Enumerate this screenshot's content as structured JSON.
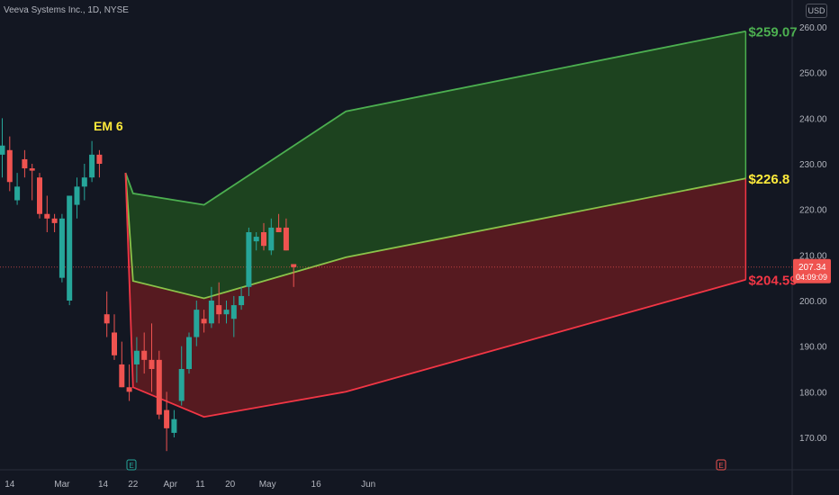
{
  "header": {
    "symbol": "Veeva Systems Inc., 1D, NYSE",
    "currency": "USD"
  },
  "colors": {
    "background": "#131722",
    "up": "#26a69a",
    "down": "#ef5350",
    "upper_band_fill": "#1e4620",
    "lower_band_fill": "#5a1a21",
    "upper_line": "#4caf50",
    "mid_line": "#8bc34a",
    "lower_line": "#f23645",
    "label_green": "#4caf50",
    "label_yellow": "#ffeb3b",
    "label_red": "#f23645",
    "em_label": "#ffeb3b"
  },
  "chart_data": {
    "type": "candlestick",
    "y_axis": {
      "range": [
        162.5,
        263
      ],
      "ticks": [
        {
          "value": 260,
          "label": "260.00"
        },
        {
          "value": 250,
          "label": "250.00"
        },
        {
          "value": 240,
          "label": "240.00"
        },
        {
          "value": 230,
          "label": "230.00"
        },
        {
          "value": 220,
          "label": "220.00"
        },
        {
          "value": 210,
          "label": "210.00"
        },
        {
          "value": 200,
          "label": "200.00"
        },
        {
          "value": 190,
          "label": "190.00"
        },
        {
          "value": 180,
          "label": "180.00"
        },
        {
          "value": 170,
          "label": "170.00"
        }
      ]
    },
    "x_axis": {
      "ticks": [
        {
          "index": 1,
          "label": "14"
        },
        {
          "index": 8,
          "label": "Mar"
        },
        {
          "index": 13.5,
          "label": "14"
        },
        {
          "index": 17.5,
          "label": "22"
        },
        {
          "index": 22.5,
          "label": "Apr"
        },
        {
          "index": 26.5,
          "label": "11"
        },
        {
          "index": 30.5,
          "label": "20"
        },
        {
          "index": 35.5,
          "label": "May"
        },
        {
          "index": 42,
          "label": "16"
        },
        {
          "index": 49,
          "label": "Jun"
        }
      ]
    },
    "candles": [
      {
        "o": 232,
        "h": 240,
        "l": 227,
        "c": 234
      },
      {
        "o": 233,
        "h": 236,
        "l": 224,
        "c": 226
      },
      {
        "o": 222,
        "h": 228,
        "l": 221,
        "c": 225
      },
      {
        "o": 231,
        "h": 233,
        "l": 227,
        "c": 229
      },
      {
        "o": 229,
        "h": 230,
        "l": 222,
        "c": 228.5
      },
      {
        "o": 227,
        "h": 228,
        "l": 218,
        "c": 219
      },
      {
        "o": 219,
        "h": 223,
        "l": 215,
        "c": 218
      },
      {
        "o": 218,
        "h": 219,
        "l": 215,
        "c": 217
      },
      {
        "o": 205,
        "h": 219,
        "l": 204,
        "c": 218
      },
      {
        "o": 200,
        "h": 222,
        "l": 199,
        "c": 223
      },
      {
        "o": 221,
        "h": 227,
        "l": 218,
        "c": 225
      },
      {
        "o": 225,
        "h": 230,
        "l": 222,
        "c": 227
      },
      {
        "o": 227,
        "h": 235,
        "l": 226,
        "c": 232
      },
      {
        "o": 232,
        "h": 233,
        "l": 227,
        "c": 230
      },
      {
        "o": 197,
        "h": 202,
        "l": 192,
        "c": 195
      },
      {
        "o": 193,
        "h": 197,
        "l": 187,
        "c": 188
      },
      {
        "o": 186,
        "h": 191,
        "l": 181,
        "c": 181
      },
      {
        "o": 181,
        "h": 186,
        "l": 178,
        "c": 180
      },
      {
        "o": 186,
        "h": 192,
        "l": 182,
        "c": 189
      },
      {
        "o": 189,
        "h": 193,
        "l": 184,
        "c": 187
      },
      {
        "o": 187,
        "h": 195,
        "l": 180,
        "c": 185
      },
      {
        "o": 187,
        "h": 189,
        "l": 174,
        "c": 175
      },
      {
        "o": 176,
        "h": 180,
        "l": 167,
        "c": 172
      },
      {
        "o": 171,
        "h": 176,
        "l": 170,
        "c": 174
      },
      {
        "o": 178,
        "h": 190,
        "l": 177,
        "c": 185
      },
      {
        "o": 185,
        "h": 193,
        "l": 184,
        "c": 192
      },
      {
        "o": 192,
        "h": 200,
        "l": 190,
        "c": 198
      },
      {
        "o": 196,
        "h": 198,
        "l": 193,
        "c": 195
      },
      {
        "o": 195,
        "h": 203,
        "l": 194,
        "c": 200
      },
      {
        "o": 199,
        "h": 204,
        "l": 195,
        "c": 197
      },
      {
        "o": 197,
        "h": 200,
        "l": 195,
        "c": 198
      },
      {
        "o": 196,
        "h": 201,
        "l": 192,
        "c": 199
      },
      {
        "o": 199,
        "h": 203,
        "l": 198,
        "c": 201
      },
      {
        "o": 203,
        "h": 216,
        "l": 201,
        "c": 215
      },
      {
        "o": 213,
        "h": 215,
        "l": 211,
        "c": 214
      },
      {
        "o": 215,
        "h": 217,
        "l": 211,
        "c": 212
      },
      {
        "o": 211,
        "h": 218,
        "l": 210,
        "c": 216
      },
      {
        "o": 216,
        "h": 219,
        "l": 215,
        "c": 215
      },
      {
        "o": 216,
        "h": 218,
        "l": 211,
        "c": 211
      },
      {
        "o": 208,
        "h": 208,
        "l": 203,
        "c": 207.34
      }
    ],
    "bands": {
      "upper": [
        {
          "x": 16.5,
          "y": 228
        },
        {
          "x": 17.5,
          "y": 223.5
        },
        {
          "x": 27,
          "y": 221
        },
        {
          "x": 46,
          "y": 241.5
        },
        {
          "x": 99.5,
          "y": 259.07
        }
      ],
      "mid": [
        {
          "x": 16.5,
          "y": 228
        },
        {
          "x": 17.5,
          "y": 204.3
        },
        {
          "x": 27,
          "y": 200.5
        },
        {
          "x": 46,
          "y": 209.5
        },
        {
          "x": 99.5,
          "y": 226.8
        }
      ],
      "lower": [
        {
          "x": 16.5,
          "y": 228
        },
        {
          "x": 17.5,
          "y": 181
        },
        {
          "x": 27,
          "y": 174.5
        },
        {
          "x": 46,
          "y": 180
        },
        {
          "x": 99.5,
          "y": 204.59
        }
      ]
    },
    "labels": {
      "em": "EM 6",
      "upper": "$259.07",
      "mid": "$226.8",
      "lower": "$204.59"
    },
    "last_price": {
      "value": 207.34,
      "label": "207.34",
      "countdown": "04:09:09"
    },
    "event_markers": [
      "E",
      "E"
    ]
  }
}
